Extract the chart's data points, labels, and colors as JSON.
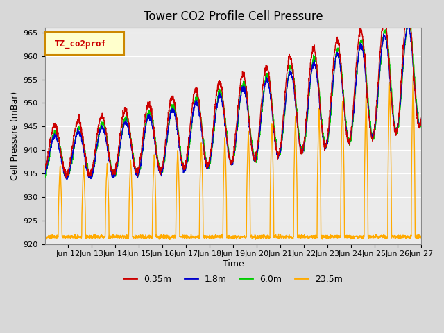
{
  "title": "Tower CO2 Profile Cell Pressure",
  "xlabel": "Time",
  "ylabel": "Cell Pressure (mBar)",
  "ylim": [
    920,
    966
  ],
  "yticks": [
    920,
    925,
    930,
    935,
    940,
    945,
    950,
    955,
    960,
    965
  ],
  "legend_label": "TZ_co2prof",
  "series_labels": [
    "0.35m",
    "1.8m",
    "6.0m",
    "23.5m"
  ],
  "series_colors": [
    "#cc0000",
    "#0000cc",
    "#00cc00",
    "#ffaa00"
  ],
  "line_width": 1.0,
  "fig_bg_color": "#d8d8d8",
  "plot_bg_color": "#ebebeb",
  "xtick_labels": [
    "Jun 12",
    "Jun 13",
    "Jun 14",
    "Jun 15",
    "Jun 16",
    "Jun 17",
    "Jun 18",
    "Jun 19",
    "Jun 20",
    "Jun 21",
    "Jun 22",
    "Jun 23",
    "Jun 24",
    "Jun 25",
    "Jun 26",
    "Jun 27"
  ],
  "num_days": 16,
  "pts_per_day": 144,
  "random_seed": 42
}
